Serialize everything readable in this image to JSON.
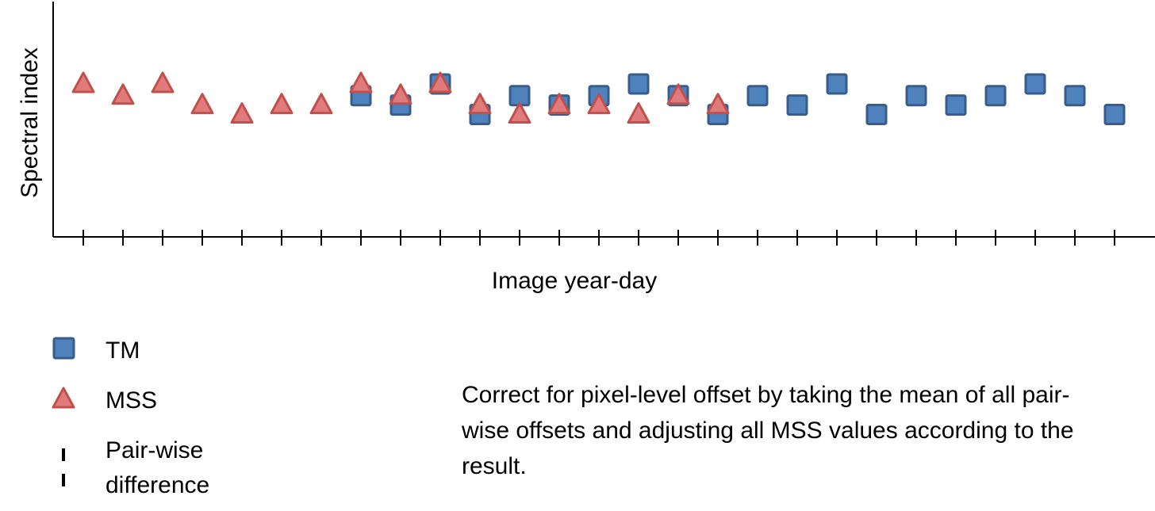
{
  "colors": {
    "tm_fill": "#4F81BD",
    "tm_stroke": "#385D8A",
    "mss_fill": "#E07B7B",
    "mss_stroke": "#C0504D",
    "axis": "#000000"
  },
  "chart_data": {
    "type": "scatter",
    "ylabel": "Spectral index",
    "xlabel": "Image year-day",
    "ylim": [
      0,
      10
    ],
    "x_ticks": [
      1,
      2,
      3,
      4,
      5,
      6,
      7,
      8,
      9,
      10,
      11,
      12,
      13,
      14,
      15,
      16,
      17,
      18,
      19,
      20,
      21,
      22,
      23,
      24,
      25,
      26,
      27
    ],
    "series": [
      {
        "name": "TM",
        "marker": "square",
        "x": [
          8,
          9,
          10,
          11,
          12,
          13,
          14,
          15,
          16,
          17,
          18,
          19,
          20,
          21,
          22,
          23,
          24,
          25,
          26,
          27
        ],
        "y": [
          6.0,
          5.6,
          6.5,
          5.2,
          6.0,
          5.6,
          6.0,
          6.5,
          6.0,
          5.2,
          6.0,
          5.6,
          6.5,
          5.2,
          6.0,
          5.6,
          6.0,
          6.5,
          6.0,
          5.2
        ]
      },
      {
        "name": "MSS",
        "marker": "triangle",
        "x": [
          1,
          2,
          3,
          4,
          5,
          6,
          7,
          8,
          9,
          10,
          11,
          12,
          13,
          14,
          15,
          16,
          17
        ],
        "y": [
          6.5,
          6.0,
          6.5,
          5.6,
          5.2,
          5.6,
          5.6,
          6.5,
          6.0,
          6.5,
          5.6,
          5.2,
          5.6,
          5.6,
          5.2,
          6.0,
          5.6
        ]
      }
    ],
    "legend_placement": "bottom-left",
    "grid": false
  },
  "legend": {
    "tm_label": "TM",
    "mss_label": "MSS",
    "diff_label_line1": "Pair-wise",
    "diff_label_line2": "difference"
  },
  "note": "Correct for pixel-level offset by taking the mean of all pair-wise offsets and adjusting all MSS values according to the result."
}
